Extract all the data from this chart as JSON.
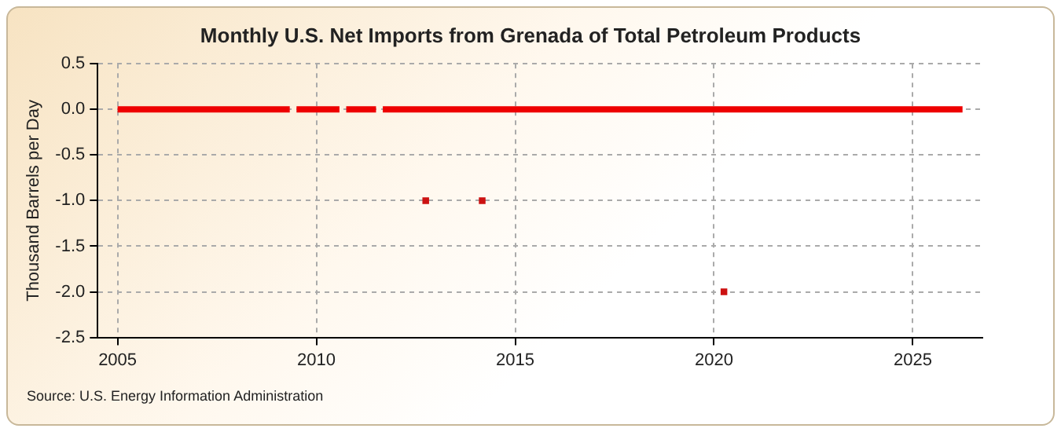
{
  "chart_data": {
    "type": "line",
    "title": "Monthly U.S. Net Imports from Grenada of Total Petroleum Products",
    "ylabel": "Thousand Barrels per Day",
    "annotations": [
      "Source: U.S. Energy Information Administration"
    ],
    "xlim": [
      2004.5,
      2026.75
    ],
    "xticks": [
      2005,
      2010,
      2015,
      2020,
      2025
    ],
    "ylim": [
      -2.5,
      0.5
    ],
    "yticks": [
      {
        "value": 0.5,
        "label": "0.5"
      },
      {
        "value": 0,
        "label": "0.0"
      },
      {
        "value": -0.5,
        "label": "-0.5"
      },
      {
        "value": -1,
        "label": "-1.0"
      },
      {
        "value": -1.5,
        "label": "-1.5"
      },
      {
        "value": -2,
        "label": "-2.0"
      },
      {
        "value": -2.5,
        "label": "-2.5"
      }
    ],
    "grid": true,
    "legend": false,
    "series": [
      {
        "color": "#ee0000",
        "x": [
          2005,
          2009.33,
          2009.42,
          2009.5,
          2010.58,
          2010.67,
          2010.75,
          2011.5,
          2011.58,
          2011.67,
          2026.25
        ],
        "values": [
          0,
          0,
          null,
          0,
          0,
          null,
          0,
          0,
          null,
          0,
          0
        ]
      },
      {
        "type": "scatter",
        "color": "#cc1111",
        "marker": "square",
        "x": [
          2012.75,
          2014.17,
          2020.25
        ],
        "values": [
          -1,
          -1,
          -2
        ]
      }
    ]
  }
}
